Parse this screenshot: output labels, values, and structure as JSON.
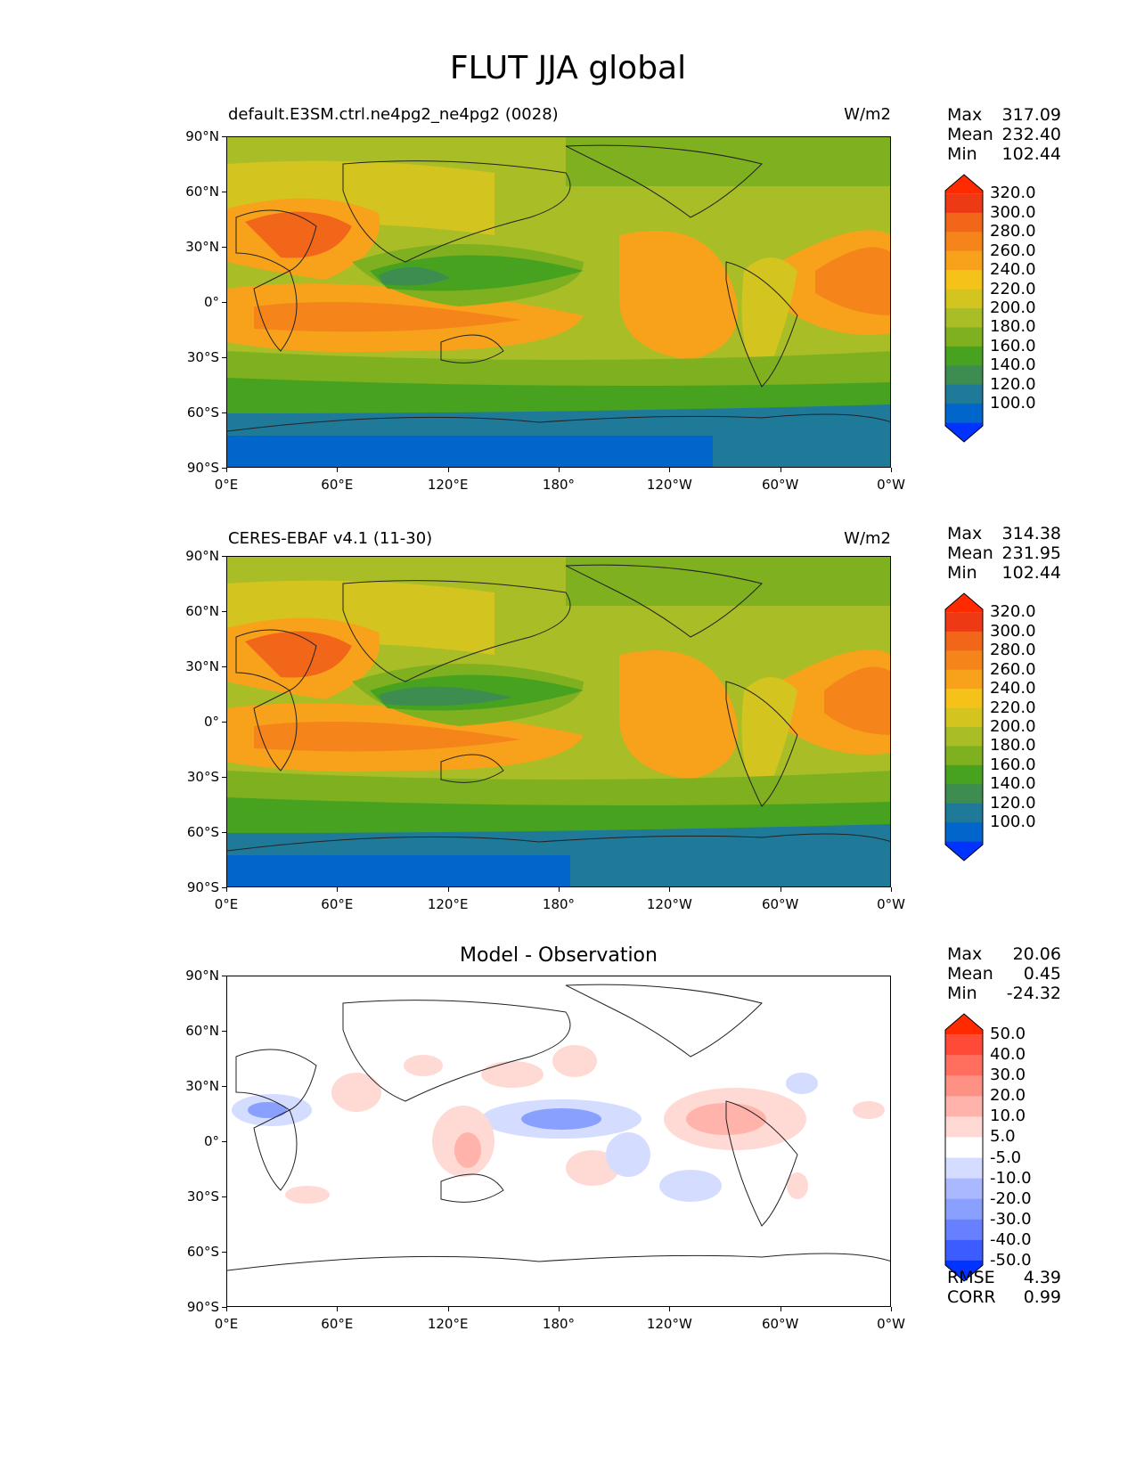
{
  "figure_title": "FLUT JJA global",
  "colors": {
    "levels_main": [
      "#0033ff",
      "#0066cc",
      "#1f7a99",
      "#3d8c50",
      "#47a31f",
      "#7fb01f",
      "#a8bd26",
      "#d4c41f",
      "#f5c21a",
      "#f7a21a",
      "#f5851a",
      "#f2661a",
      "#ee3a14",
      "#ff2a00"
    ],
    "levels_diff": [
      "#0033ff",
      "#3d5cff",
      "#6680ff",
      "#8aa0ff",
      "#aab8ff",
      "#d4dcff",
      "#ffffff",
      "#ffd9d4",
      "#ffb3ab",
      "#ff9184",
      "#ff6e5e",
      "#ff4a38",
      "#ff2a00"
    ]
  },
  "panels": [
    {
      "label": "default.E3SM.ctrl.ne4pg2_ne4pg2 (0028)",
      "units": "W/m2",
      "stats": {
        "max_label": "Max",
        "max": "317.09",
        "mean_label": "Mean",
        "mean": "232.40",
        "min_label": "Min",
        "min": "102.44"
      },
      "colorbar_labels": [
        "320.0",
        "300.0",
        "280.0",
        "260.0",
        "240.0",
        "220.0",
        "200.0",
        "180.0",
        "160.0",
        "140.0",
        "120.0",
        "100.0"
      ]
    },
    {
      "label": "CERES-EBAF v4.1 (11-30)",
      "units": "W/m2",
      "stats": {
        "max_label": "Max",
        "max": "314.38",
        "mean_label": "Mean",
        "mean": "231.95",
        "min_label": "Min",
        "min": "102.44"
      },
      "colorbar_labels": [
        "320.0",
        "300.0",
        "280.0",
        "260.0",
        "240.0",
        "220.0",
        "200.0",
        "180.0",
        "160.0",
        "140.0",
        "120.0",
        "100.0"
      ]
    },
    {
      "label": "Model - Observation",
      "units": "",
      "stats": {
        "max_label": "Max",
        "max": "20.06",
        "mean_label": "Mean",
        "mean": "0.45",
        "min_label": "Min",
        "min": "-24.32"
      },
      "colorbar_labels": [
        "50.0",
        "40.0",
        "30.0",
        "20.0",
        "10.0",
        "5.0",
        "-5.0",
        "-10.0",
        "-20.0",
        "-30.0",
        "-40.0",
        "-50.0"
      ],
      "extra": {
        "rmse_label": "RMSE",
        "rmse": "4.39",
        "corr_label": "CORR",
        "corr": "0.99"
      }
    }
  ],
  "axes": {
    "lat_labels": [
      "90°N",
      "60°N",
      "30°N",
      "0°",
      "30°S",
      "60°S",
      "90°S"
    ],
    "lon_labels": [
      "0°E",
      "60°E",
      "120°E",
      "180°",
      "120°W",
      "60°W",
      "0°W"
    ]
  }
}
